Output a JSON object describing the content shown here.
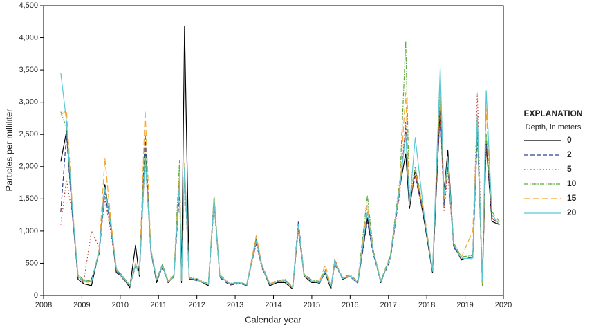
{
  "chart_data": {
    "type": "line",
    "x_label": "Calendar year",
    "y_label": "Particles per milliliter",
    "legend_title": "EXPLANATION",
    "legend_subtitle": "Depth, in meters",
    "xlim": [
      2008,
      2020
    ],
    "xticks": [
      2008,
      2009,
      2010,
      2011,
      2012,
      2013,
      2014,
      2015,
      2016,
      2017,
      2018,
      2019,
      2020
    ],
    "ylim": [
      0,
      4500
    ],
    "yticks": [
      0,
      500,
      {
        "value": 1000,
        "label": "1,000"
      },
      {
        "value": 1500,
        "label": "1,500"
      },
      {
        "value": 2000,
        "label": "2,000"
      },
      {
        "value": 2500,
        "label": "2,500"
      },
      {
        "value": 3000,
        "label": "3,000"
      },
      {
        "value": 3500,
        "label": "3,500"
      },
      {
        "value": 4000,
        "label": "4,000"
      },
      {
        "value": 4500,
        "label": "4,500"
      }
    ],
    "x": [
      2008.45,
      2008.6,
      2008.75,
      2008.9,
      2009.05,
      2009.25,
      2009.45,
      2009.6,
      2009.75,
      2009.9,
      2010.05,
      2010.25,
      2010.4,
      2010.5,
      2010.65,
      2010.8,
      2010.95,
      2011.1,
      2011.25,
      2011.4,
      2011.55,
      2011.6,
      2011.68,
      2011.8,
      2012.0,
      2012.3,
      2012.45,
      2012.6,
      2012.85,
      2013.1,
      2013.3,
      2013.55,
      2013.7,
      2013.9,
      2014.1,
      2014.3,
      2014.5,
      2014.65,
      2014.8,
      2015.0,
      2015.2,
      2015.35,
      2015.5,
      2015.6,
      2015.8,
      2016.0,
      2016.2,
      2016.45,
      2016.6,
      2016.8,
      2017.05,
      2017.3,
      2017.45,
      2017.55,
      2017.7,
      2017.95,
      2018.15,
      2018.35,
      2018.45,
      2018.55,
      2018.7,
      2018.9,
      2019.2,
      2019.32,
      2019.45,
      2019.55,
      2019.7,
      2019.9
    ],
    "series": [
      {
        "name": "0",
        "color": "#000000",
        "dash": "",
        "values": [
          2080,
          2550,
          1300,
          250,
          180,
          150,
          700,
          1720,
          1100,
          350,
          300,
          120,
          780,
          300,
          2200,
          700,
          200,
          470,
          200,
          300,
          1800,
          200,
          4180,
          250,
          250,
          150,
          1500,
          300,
          180,
          200,
          150,
          870,
          450,
          150,
          200,
          200,
          100,
          1050,
          300,
          200,
          200,
          350,
          100,
          550,
          250,
          300,
          200,
          1200,
          700,
          200,
          600,
          1700,
          2200,
          1350,
          1950,
          1100,
          350,
          2950,
          1600,
          2250,
          800,
          550,
          600,
          2700,
          200,
          2350,
          1150,
          1100
        ]
      },
      {
        "name": "2",
        "color": "#2c3e8f",
        "dash": "6 3",
        "values": [
          1300,
          2500,
          1250,
          300,
          200,
          250,
          650,
          1600,
          1050,
          400,
          280,
          150,
          450,
          350,
          2500,
          650,
          250,
          420,
          220,
          280,
          1600,
          250,
          1900,
          260,
          230,
          170,
          1450,
          280,
          160,
          180,
          160,
          820,
          430,
          180,
          220,
          240,
          120,
          1150,
          320,
          230,
          180,
          380,
          130,
          480,
          270,
          290,
          190,
          1150,
          650,
          220,
          550,
          1650,
          2600,
          1450,
          1850,
          1150,
          380,
          2900,
          1400,
          2000,
          750,
          580,
          560,
          2500,
          250,
          2400,
          1200,
          1100
        ]
      },
      {
        "name": "5",
        "color": "#c0392b",
        "dash": "1.5 3",
        "values": [
          1100,
          1800,
          1250,
          280,
          220,
          1000,
          750,
          1500,
          1000,
          380,
          260,
          140,
          500,
          320,
          2100,
          680,
          230,
          450,
          210,
          290,
          1700,
          230,
          2000,
          270,
          240,
          160,
          1400,
          300,
          170,
          190,
          170,
          800,
          420,
          170,
          210,
          220,
          110,
          1000,
          310,
          210,
          190,
          360,
          120,
          560,
          260,
          300,
          210,
          1250,
          680,
          210,
          580,
          1600,
          2700,
          1400,
          1900,
          1150,
          370,
          3000,
          1300,
          1900,
          780,
          560,
          590,
          3150,
          220,
          2300,
          1200,
          1120
        ]
      },
      {
        "name": "10",
        "color": "#5aa83c",
        "dash": "6 2 1.5 2",
        "values": [
          2850,
          2600,
          1350,
          320,
          240,
          220,
          680,
          1650,
          1150,
          420,
          310,
          160,
          480,
          340,
          2300,
          720,
          260,
          480,
          230,
          310,
          2100,
          260,
          1950,
          280,
          260,
          180,
          1550,
          320,
          190,
          210,
          170,
          900,
          470,
          190,
          230,
          250,
          130,
          1100,
          330,
          240,
          220,
          400,
          140,
          520,
          280,
          320,
          220,
          1550,
          720,
          230,
          620,
          1800,
          3950,
          1500,
          2000,
          1200,
          400,
          3200,
          1500,
          2100,
          820,
          600,
          620,
          2600,
          150,
          2500,
          1300,
          1150
        ]
      },
      {
        "name": "15",
        "color": "#f2a530",
        "dash": "9 4",
        "values": [
          2800,
          2870,
          1400,
          300,
          210,
          200,
          720,
          2130,
          1200,
          400,
          290,
          150,
          500,
          330,
          2870,
          720,
          240,
          440,
          220,
          300,
          1900,
          240,
          2050,
          270,
          250,
          170,
          1500,
          310,
          180,
          200,
          160,
          930,
          460,
          180,
          220,
          230,
          120,
          1050,
          320,
          220,
          210,
          480,
          130,
          500,
          270,
          310,
          210,
          1400,
          700,
          220,
          600,
          1750,
          3150,
          1450,
          1950,
          1200,
          390,
          3300,
          1500,
          2050,
          800,
          590,
          1000,
          2750,
          200,
          2900,
          1250,
          1150
        ]
      },
      {
        "name": "20",
        "color": "#5bc7d4",
        "dash": "",
        "values": [
          3450,
          2700,
          1350,
          290,
          230,
          210,
          690,
          1680,
          1100,
          410,
          300,
          150,
          470,
          320,
          2150,
          700,
          240,
          460,
          210,
          290,
          1750,
          230,
          2000,
          280,
          240,
          170,
          1480,
          300,
          180,
          200,
          160,
          850,
          450,
          170,
          210,
          230,
          120,
          1100,
          310,
          220,
          200,
          370,
          130,
          540,
          260,
          300,
          200,
          1300,
          690,
          210,
          590,
          1700,
          2500,
          1400,
          2450,
          1150,
          380,
          3530,
          1550,
          2150,
          800,
          570,
          580,
          2800,
          210,
          3180,
          1250,
          1100
        ]
      }
    ]
  }
}
